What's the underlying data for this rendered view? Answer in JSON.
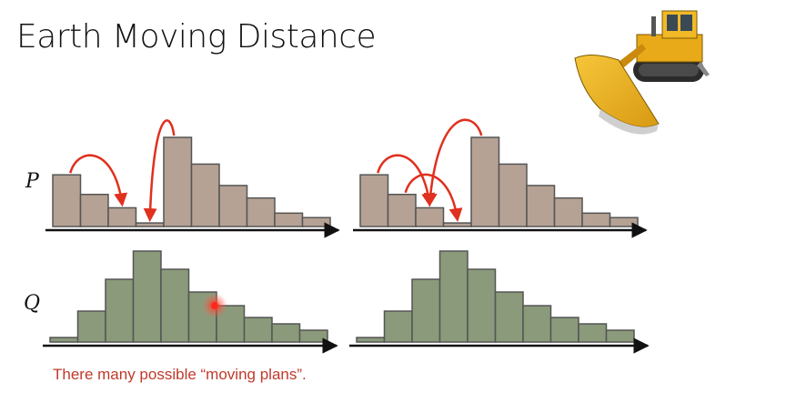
{
  "slide": {
    "title": "Earth Moving Distance",
    "caption": "There many possible “moving plans”.",
    "label_p": "P",
    "label_q": "Q",
    "bulldozer_icon": "bulldozer-icon",
    "pointer_icon": "laser-pointer-dot-icon"
  },
  "colors": {
    "p_fill": "#b5a294",
    "q_fill": "#8a9a7b",
    "bar_stroke": "#555555",
    "arrow": "#e0301e",
    "axis": "#111111",
    "caption": "#c0392b"
  },
  "chart_data": {
    "type": "diagram",
    "distributions": {
      "P": [
        0.58,
        0.36,
        0.21,
        0.04,
        1.0,
        0.7,
        0.46,
        0.32,
        0.15,
        0.1
      ],
      "Q": [
        0.05,
        0.34,
        0.69,
        1.0,
        0.8,
        0.55,
        0.4,
        0.27,
        0.2,
        0.13
      ]
    },
    "plans": [
      {
        "name": "left-plan",
        "moves": [
          {
            "from": 0,
            "to": 2
          },
          {
            "from": 4,
            "to": 3
          }
        ]
      },
      {
        "name": "right-plan",
        "moves": [
          {
            "from": 0,
            "to": 2
          },
          {
            "from": 4,
            "to": 2
          },
          {
            "from": 1,
            "to": 3
          }
        ]
      }
    ]
  }
}
